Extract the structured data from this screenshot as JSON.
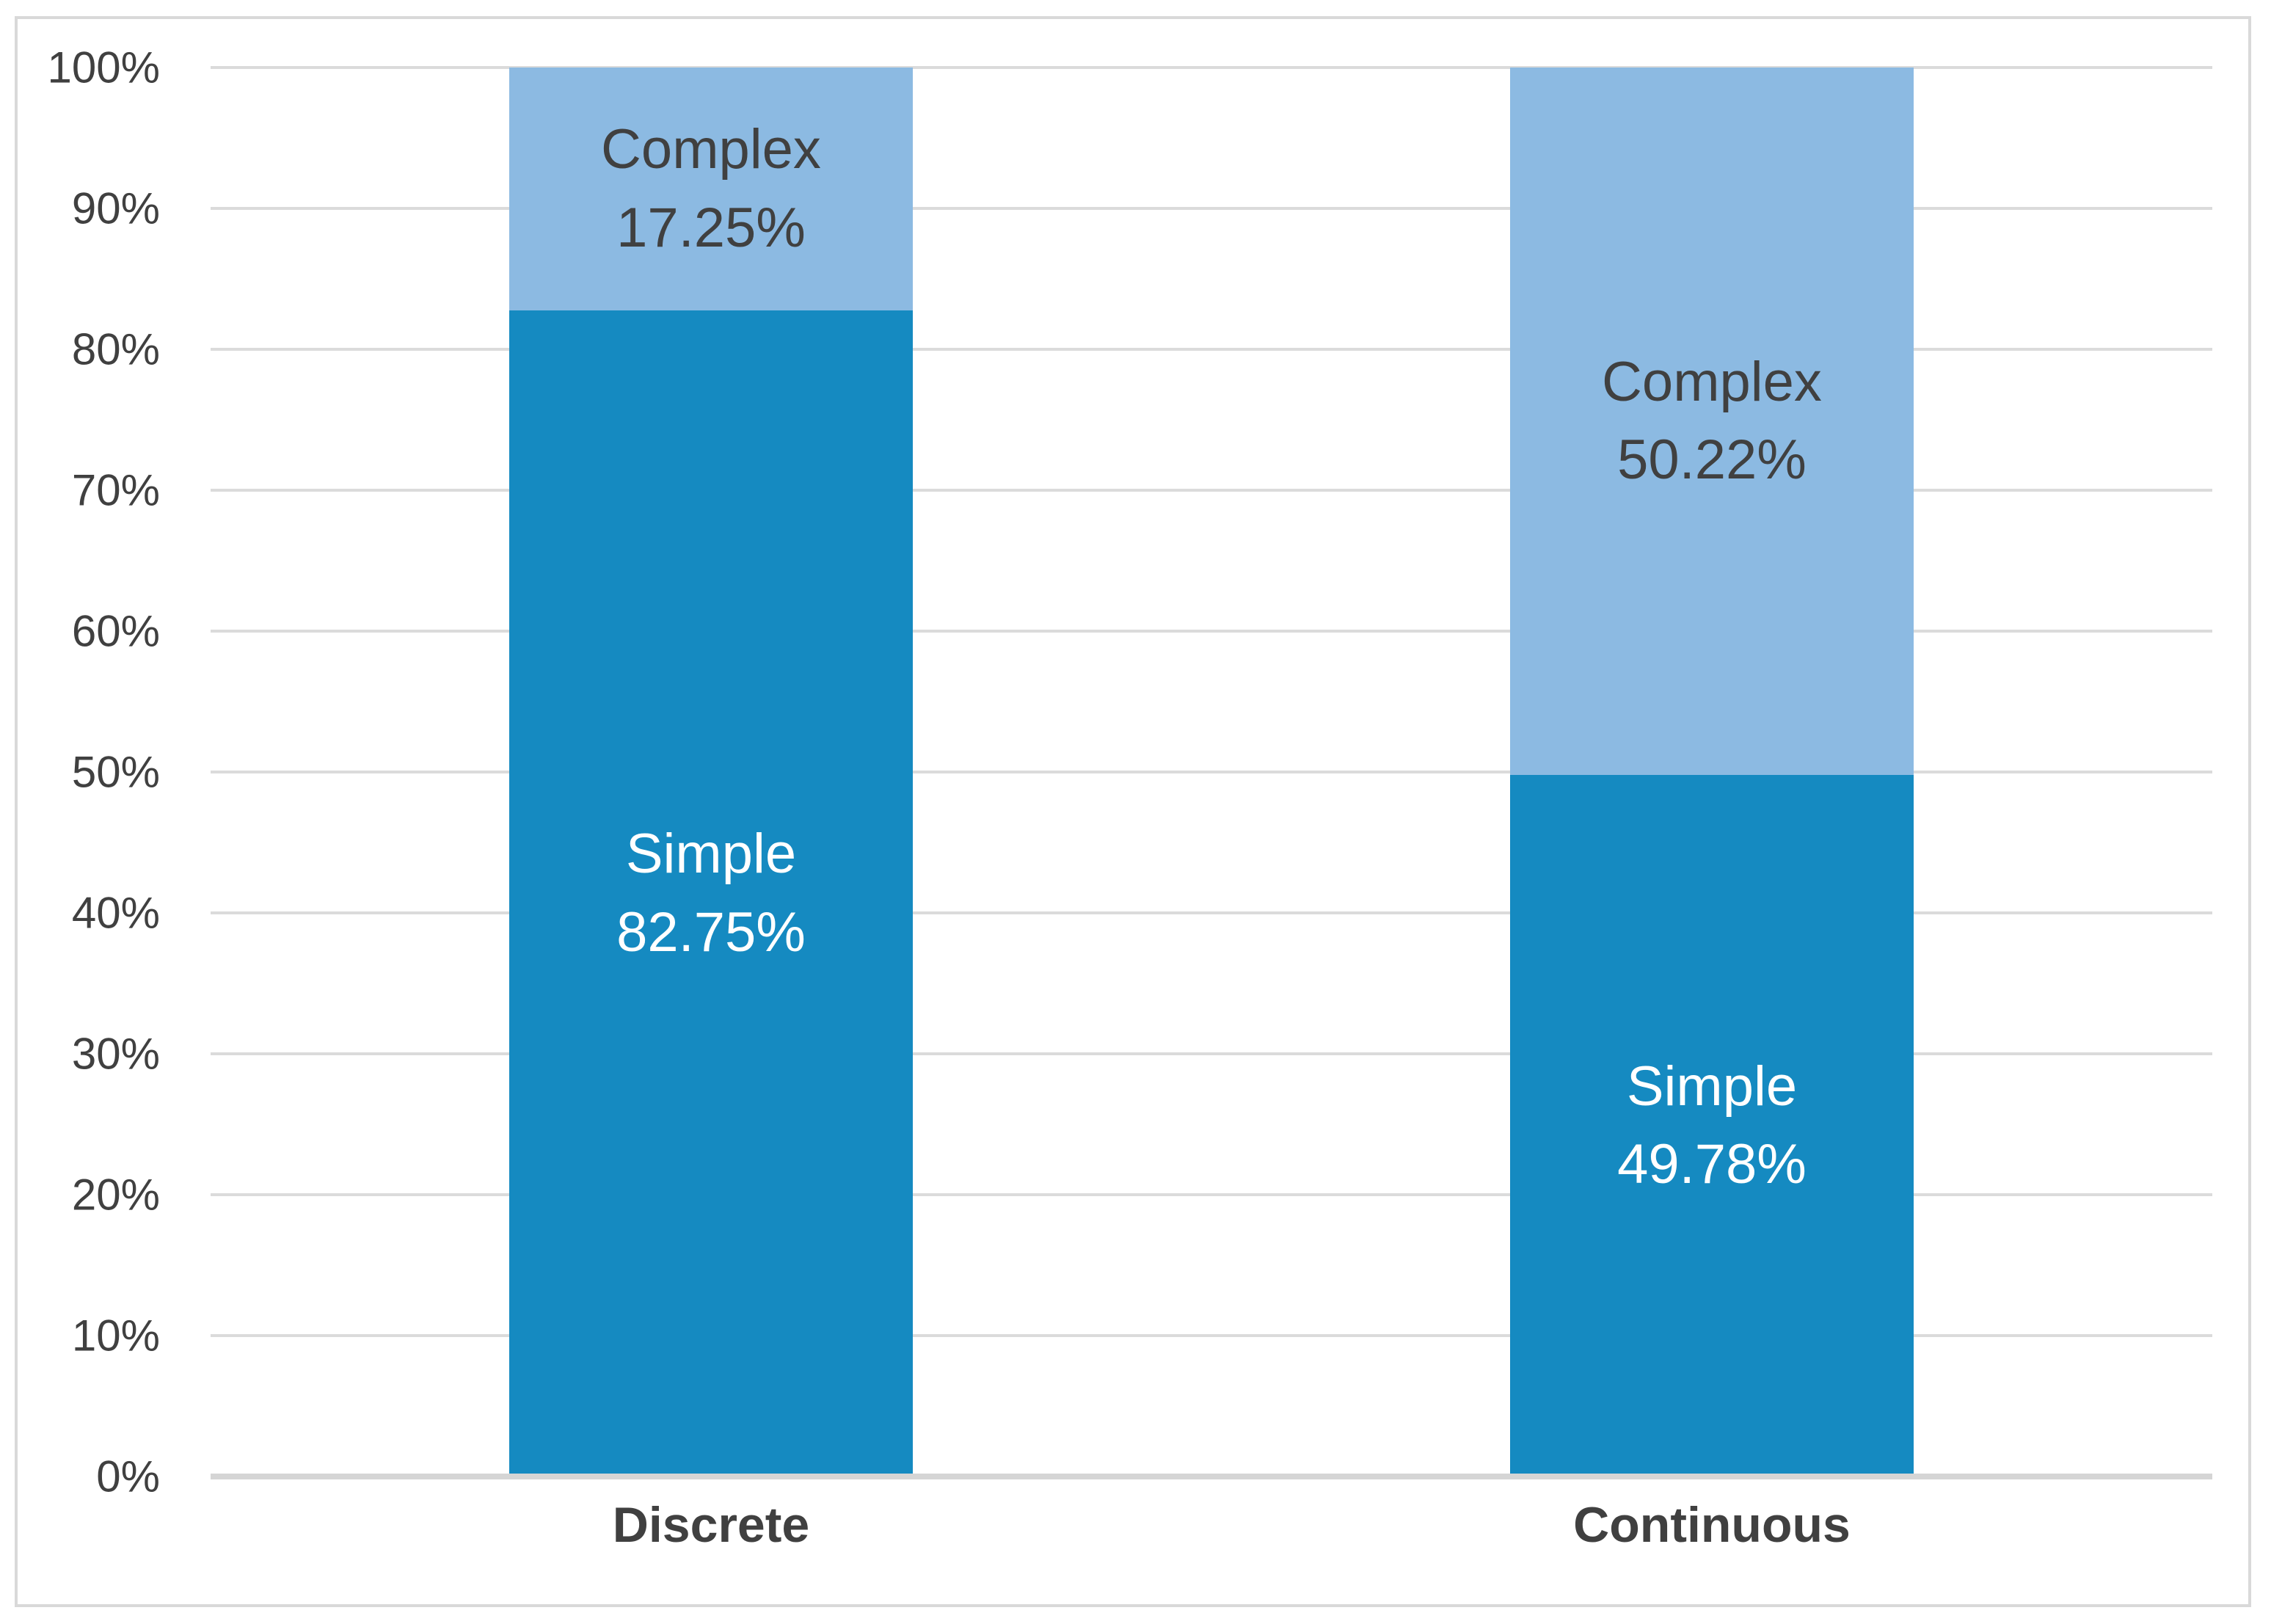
{
  "chart_data": {
    "type": "bar",
    "subtype": "100-percent-stacked-column",
    "title": "",
    "legend_position": "none",
    "background": "#FFFFFF",
    "categories": [
      "Discrete",
      "Continuous"
    ],
    "series": [
      {
        "name": "Simple",
        "values": [
          82.75,
          49.78
        ],
        "color": "#158AC1",
        "label_color": "#FFFFFF"
      },
      {
        "name": "Complex",
        "values": [
          17.25,
          50.22
        ],
        "color": "#8CBAE2",
        "label_color": "#404040"
      }
    ],
    "bars": [
      {
        "category": "Discrete",
        "segments": [
          {
            "series": "Complex",
            "value": 17.25,
            "label_name": "Complex",
            "label_value": "17.25%"
          },
          {
            "series": "Simple",
            "value": 82.75,
            "label_name": "Simple",
            "label_value": "82.75%"
          }
        ]
      },
      {
        "category": "Continuous",
        "segments": [
          {
            "series": "Complex",
            "value": 50.22,
            "label_name": "Complex",
            "label_value": "50.22%"
          },
          {
            "series": "Simple",
            "value": 49.78,
            "label_name": "Simple",
            "label_value": "49.78%"
          }
        ]
      }
    ],
    "y_axis": {
      "min": 0,
      "max": 100,
      "step": 10,
      "tick_color": "#404040",
      "ticks": [
        {
          "value": 0,
          "label": "0%"
        },
        {
          "value": 10,
          "label": "10%"
        },
        {
          "value": 20,
          "label": "20%"
        },
        {
          "value": 30,
          "label": "30%"
        },
        {
          "value": 40,
          "label": "40%"
        },
        {
          "value": 50,
          "label": "50%"
        },
        {
          "value": 60,
          "label": "60%"
        },
        {
          "value": 70,
          "label": "70%"
        },
        {
          "value": 80,
          "label": "80%"
        },
        {
          "value": 90,
          "label": "90%"
        },
        {
          "value": 100,
          "label": "100%"
        }
      ]
    },
    "x_axis": {
      "label_color": "#404040"
    },
    "grid": {
      "on": true,
      "line_color": "#DBDBDB",
      "axis_line_color": "#D5D5D5",
      "frame_border_color": "#D9D9D9"
    }
  }
}
